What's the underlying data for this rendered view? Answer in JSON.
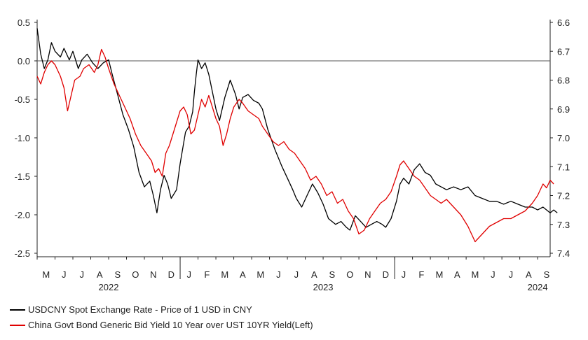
{
  "chart_data": {
    "type": "line",
    "title": "",
    "left_axis": {
      "ticks": [
        0.5,
        0.0,
        -0.5,
        -1.0,
        -1.5,
        -2.0,
        -2.5
      ],
      "tick_labels": [
        "0.5",
        "0.0",
        "-0.5",
        "-1.0",
        "-1.5",
        "-2.0",
        "-2.5"
      ],
      "range": [
        -2.6,
        0.5
      ]
    },
    "right_axis": {
      "ticks": [
        6.6,
        6.7,
        6.8,
        6.9,
        7.0,
        7.1,
        7.2,
        7.3,
        7.4
      ],
      "tick_labels": [
        "6.6",
        "6.7",
        "6.8",
        "6.9",
        "7.0",
        "7.1",
        "7.2",
        "7.3",
        "7.4"
      ],
      "range": [
        6.6,
        7.41
      ],
      "inverted": true
    },
    "x_axis": {
      "months": [
        "M",
        "J",
        "J",
        "A",
        "S",
        "O",
        "N",
        "D",
        "J",
        "F",
        "M",
        "A",
        "M",
        "J",
        "J",
        "A",
        "S",
        "O",
        "N",
        "D",
        "J",
        "F",
        "M",
        "A",
        "M",
        "J",
        "J",
        "A",
        "S"
      ],
      "years": [
        {
          "label": "2022",
          "month_index": 3.5
        },
        {
          "label": "2023",
          "month_index": 15.5
        },
        {
          "label": "2024",
          "month_index": 27.5
        }
      ],
      "range_months": [
        -0.5,
        28.2
      ]
    },
    "reference_line": 0.0,
    "grid": false,
    "legend_position": "bottom-left",
    "series": [
      {
        "name": "USDCNY Spot Exchange Rate - Price of 1 USD in CNY",
        "axis": "right",
        "color": "#000000",
        "points": [
          [
            -0.5,
            6.62
          ],
          [
            -0.3,
            6.71
          ],
          [
            -0.1,
            6.76
          ],
          [
            0.1,
            6.73
          ],
          [
            0.3,
            6.67
          ],
          [
            0.5,
            6.7
          ],
          [
            0.8,
            6.72
          ],
          [
            1.0,
            6.69
          ],
          [
            1.3,
            6.73
          ],
          [
            1.5,
            6.7
          ],
          [
            1.8,
            6.76
          ],
          [
            2.0,
            6.73
          ],
          [
            2.3,
            6.71
          ],
          [
            2.6,
            6.74
          ],
          [
            2.9,
            6.76
          ],
          [
            3.2,
            6.74
          ],
          [
            3.5,
            6.73
          ],
          [
            3.7,
            6.78
          ],
          [
            4.0,
            6.85
          ],
          [
            4.3,
            6.92
          ],
          [
            4.6,
            6.97
          ],
          [
            4.9,
            7.03
          ],
          [
            5.2,
            7.12
          ],
          [
            5.5,
            7.17
          ],
          [
            5.8,
            7.15
          ],
          [
            6.0,
            7.2
          ],
          [
            6.2,
            7.26
          ],
          [
            6.4,
            7.18
          ],
          [
            6.6,
            7.13
          ],
          [
            6.8,
            7.16
          ],
          [
            7.0,
            7.21
          ],
          [
            7.3,
            7.18
          ],
          [
            7.5,
            7.09
          ],
          [
            7.8,
            6.98
          ],
          [
            8.0,
            6.96
          ],
          [
            8.2,
            6.91
          ],
          [
            8.3,
            6.84
          ],
          [
            8.4,
            6.78
          ],
          [
            8.5,
            6.73
          ],
          [
            8.7,
            6.76
          ],
          [
            8.9,
            6.74
          ],
          [
            9.1,
            6.78
          ],
          [
            9.3,
            6.84
          ],
          [
            9.5,
            6.9
          ],
          [
            9.7,
            6.94
          ],
          [
            10.0,
            6.86
          ],
          [
            10.3,
            6.8
          ],
          [
            10.6,
            6.85
          ],
          [
            10.8,
            6.9
          ],
          [
            11.0,
            6.86
          ],
          [
            11.3,
            6.85
          ],
          [
            11.6,
            6.87
          ],
          [
            11.9,
            6.88
          ],
          [
            12.1,
            6.9
          ],
          [
            12.4,
            6.97
          ],
          [
            12.8,
            7.04
          ],
          [
            13.2,
            7.1
          ],
          [
            13.5,
            7.14
          ],
          [
            13.8,
            7.18
          ],
          [
            14.0,
            7.21
          ],
          [
            14.3,
            7.24
          ],
          [
            14.6,
            7.2
          ],
          [
            14.9,
            7.16
          ],
          [
            15.2,
            7.19
          ],
          [
            15.5,
            7.23
          ],
          [
            15.8,
            7.28
          ],
          [
            16.2,
            7.3
          ],
          [
            16.5,
            7.29
          ],
          [
            16.8,
            7.31
          ],
          [
            17.0,
            7.32
          ],
          [
            17.3,
            7.27
          ],
          [
            17.6,
            7.29
          ],
          [
            17.9,
            7.31
          ],
          [
            18.2,
            7.3
          ],
          [
            18.5,
            7.29
          ],
          [
            18.8,
            7.3
          ],
          [
            19.0,
            7.31
          ],
          [
            19.3,
            7.28
          ],
          [
            19.6,
            7.22
          ],
          [
            19.8,
            7.16
          ],
          [
            20.0,
            7.14
          ],
          [
            20.3,
            7.16
          ],
          [
            20.6,
            7.11
          ],
          [
            20.9,
            7.09
          ],
          [
            21.2,
            7.12
          ],
          [
            21.5,
            7.13
          ],
          [
            21.8,
            7.16
          ],
          [
            22.1,
            7.17
          ],
          [
            22.4,
            7.18
          ],
          [
            22.8,
            7.17
          ],
          [
            23.2,
            7.18
          ],
          [
            23.6,
            7.17
          ],
          [
            24.0,
            7.2
          ],
          [
            24.4,
            7.21
          ],
          [
            24.8,
            7.22
          ],
          [
            25.2,
            7.22
          ],
          [
            25.6,
            7.23
          ],
          [
            26.0,
            7.22
          ],
          [
            26.4,
            7.23
          ],
          [
            26.8,
            7.24
          ],
          [
            27.2,
            7.24
          ],
          [
            27.5,
            7.25
          ],
          [
            27.8,
            7.24
          ],
          [
            28.0,
            7.25
          ],
          [
            28.2,
            7.26
          ],
          [
            28.4,
            7.25
          ],
          [
            28.6,
            7.26
          ]
        ]
      },
      {
        "name": "China Govt Bond Generic Bid Yield 10 Year over UST 10YR Yield(Left)",
        "axis": "left",
        "color": "#e00000",
        "points": [
          [
            -0.5,
            -0.2
          ],
          [
            -0.3,
            -0.3
          ],
          [
            -0.1,
            -0.15
          ],
          [
            0.1,
            -0.05
          ],
          [
            0.3,
            0.0
          ],
          [
            0.5,
            -0.05
          ],
          [
            0.8,
            -0.2
          ],
          [
            1.0,
            -0.35
          ],
          [
            1.2,
            -0.65
          ],
          [
            1.4,
            -0.45
          ],
          [
            1.6,
            -0.25
          ],
          [
            1.9,
            -0.2
          ],
          [
            2.1,
            -0.1
          ],
          [
            2.4,
            -0.05
          ],
          [
            2.7,
            -0.15
          ],
          [
            2.9,
            -0.05
          ],
          [
            3.1,
            0.15
          ],
          [
            3.3,
            0.05
          ],
          [
            3.5,
            -0.1
          ],
          [
            3.8,
            -0.3
          ],
          [
            4.1,
            -0.45
          ],
          [
            4.4,
            -0.6
          ],
          [
            4.7,
            -0.75
          ],
          [
            5.0,
            -0.95
          ],
          [
            5.3,
            -1.1
          ],
          [
            5.6,
            -1.2
          ],
          [
            5.9,
            -1.3
          ],
          [
            6.1,
            -1.45
          ],
          [
            6.3,
            -1.4
          ],
          [
            6.5,
            -1.5
          ],
          [
            6.7,
            -1.2
          ],
          [
            6.9,
            -1.1
          ],
          [
            7.1,
            -0.95
          ],
          [
            7.3,
            -0.8
          ],
          [
            7.5,
            -0.65
          ],
          [
            7.7,
            -0.6
          ],
          [
            7.9,
            -0.7
          ],
          [
            8.1,
            -0.95
          ],
          [
            8.3,
            -0.9
          ],
          [
            8.5,
            -0.7
          ],
          [
            8.7,
            -0.5
          ],
          [
            8.9,
            -0.6
          ],
          [
            9.1,
            -0.45
          ],
          [
            9.3,
            -0.6
          ],
          [
            9.5,
            -0.75
          ],
          [
            9.7,
            -0.85
          ],
          [
            9.9,
            -1.1
          ],
          [
            10.1,
            -0.95
          ],
          [
            10.3,
            -0.75
          ],
          [
            10.5,
            -0.6
          ],
          [
            10.8,
            -0.5
          ],
          [
            11.0,
            -0.55
          ],
          [
            11.3,
            -0.65
          ],
          [
            11.6,
            -0.7
          ],
          [
            11.9,
            -0.75
          ],
          [
            12.1,
            -0.85
          ],
          [
            12.4,
            -0.95
          ],
          [
            12.7,
            -1.05
          ],
          [
            13.0,
            -1.1
          ],
          [
            13.3,
            -1.05
          ],
          [
            13.6,
            -1.15
          ],
          [
            13.9,
            -1.2
          ],
          [
            14.2,
            -1.3
          ],
          [
            14.5,
            -1.4
          ],
          [
            14.8,
            -1.55
          ],
          [
            15.1,
            -1.5
          ],
          [
            15.4,
            -1.6
          ],
          [
            15.7,
            -1.75
          ],
          [
            16.0,
            -1.7
          ],
          [
            16.3,
            -1.85
          ],
          [
            16.6,
            -1.8
          ],
          [
            16.9,
            -1.95
          ],
          [
            17.2,
            -2.05
          ],
          [
            17.5,
            -2.25
          ],
          [
            17.8,
            -2.2
          ],
          [
            18.1,
            -2.05
          ],
          [
            18.4,
            -1.95
          ],
          [
            18.7,
            -1.85
          ],
          [
            19.0,
            -1.8
          ],
          [
            19.3,
            -1.7
          ],
          [
            19.6,
            -1.5
          ],
          [
            19.8,
            -1.35
          ],
          [
            20.0,
            -1.3
          ],
          [
            20.3,
            -1.4
          ],
          [
            20.6,
            -1.5
          ],
          [
            20.9,
            -1.55
          ],
          [
            21.2,
            -1.65
          ],
          [
            21.5,
            -1.75
          ],
          [
            21.8,
            -1.8
          ],
          [
            22.1,
            -1.85
          ],
          [
            22.4,
            -1.8
          ],
          [
            22.8,
            -1.9
          ],
          [
            23.2,
            -2.0
          ],
          [
            23.6,
            -2.15
          ],
          [
            24.0,
            -2.35
          ],
          [
            24.4,
            -2.25
          ],
          [
            24.8,
            -2.15
          ],
          [
            25.2,
            -2.1
          ],
          [
            25.6,
            -2.05
          ],
          [
            26.0,
            -2.05
          ],
          [
            26.4,
            -2.0
          ],
          [
            26.8,
            -1.95
          ],
          [
            27.2,
            -1.85
          ],
          [
            27.5,
            -1.75
          ],
          [
            27.8,
            -1.6
          ],
          [
            28.0,
            -1.65
          ],
          [
            28.2,
            -1.55
          ],
          [
            28.4,
            -1.6
          ]
        ]
      }
    ]
  },
  "legend": {
    "items": [
      {
        "label": "USDCNY Spot Exchange Rate - Price of 1 USD in CNY",
        "color": "#000000"
      },
      {
        "label": "China Govt Bond Generic Bid Yield 10 Year over UST 10YR Yield(Left)",
        "color": "#e00000"
      }
    ]
  }
}
